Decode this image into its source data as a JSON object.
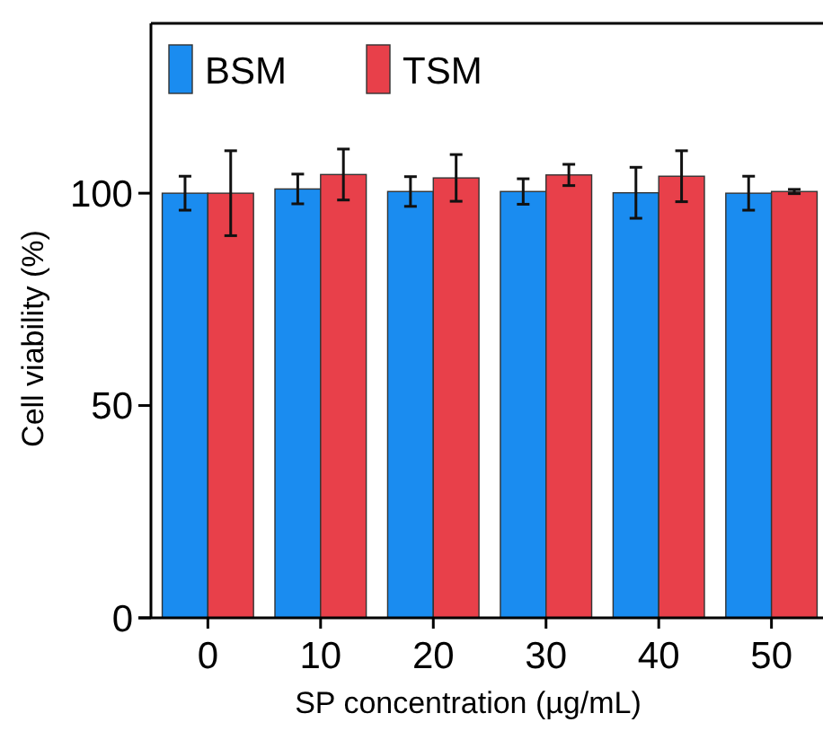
{
  "chart_data": {
    "type": "bar",
    "xlabel": "SP concentration (µg/mL)",
    "ylabel": "Cell viability (%)",
    "categories": [
      "0",
      "10",
      "20",
      "30",
      "40",
      "50"
    ],
    "series": [
      {
        "name": "BSM",
        "color": "#1a8cf0",
        "values": [
          100,
          101,
          100.4,
          100.4,
          100.1,
          100
        ],
        "errors": [
          4,
          3.5,
          3.5,
          3,
          6,
          4
        ]
      },
      {
        "name": "TSM",
        "color": "#e8404a",
        "values": [
          100,
          104.4,
          103.6,
          104.3,
          104,
          100.4
        ],
        "errors": [
          10,
          6,
          5.5,
          2.5,
          6,
          0.5
        ]
      }
    ],
    "ylim": [
      0,
      140
    ],
    "yticks": [
      0,
      50,
      100
    ],
    "grid": false,
    "legend": "top left"
  }
}
